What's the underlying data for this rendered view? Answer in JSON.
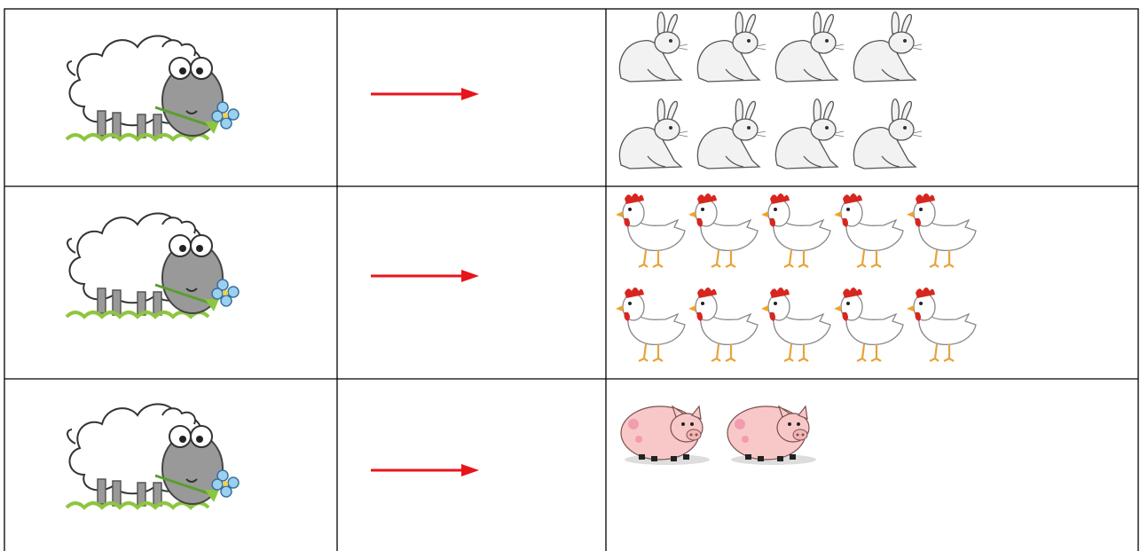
{
  "table": {
    "rows": [
      {
        "count": 8
      },
      {
        "count": 10
      },
      {
        "count": 2
      }
    ]
  }
}
